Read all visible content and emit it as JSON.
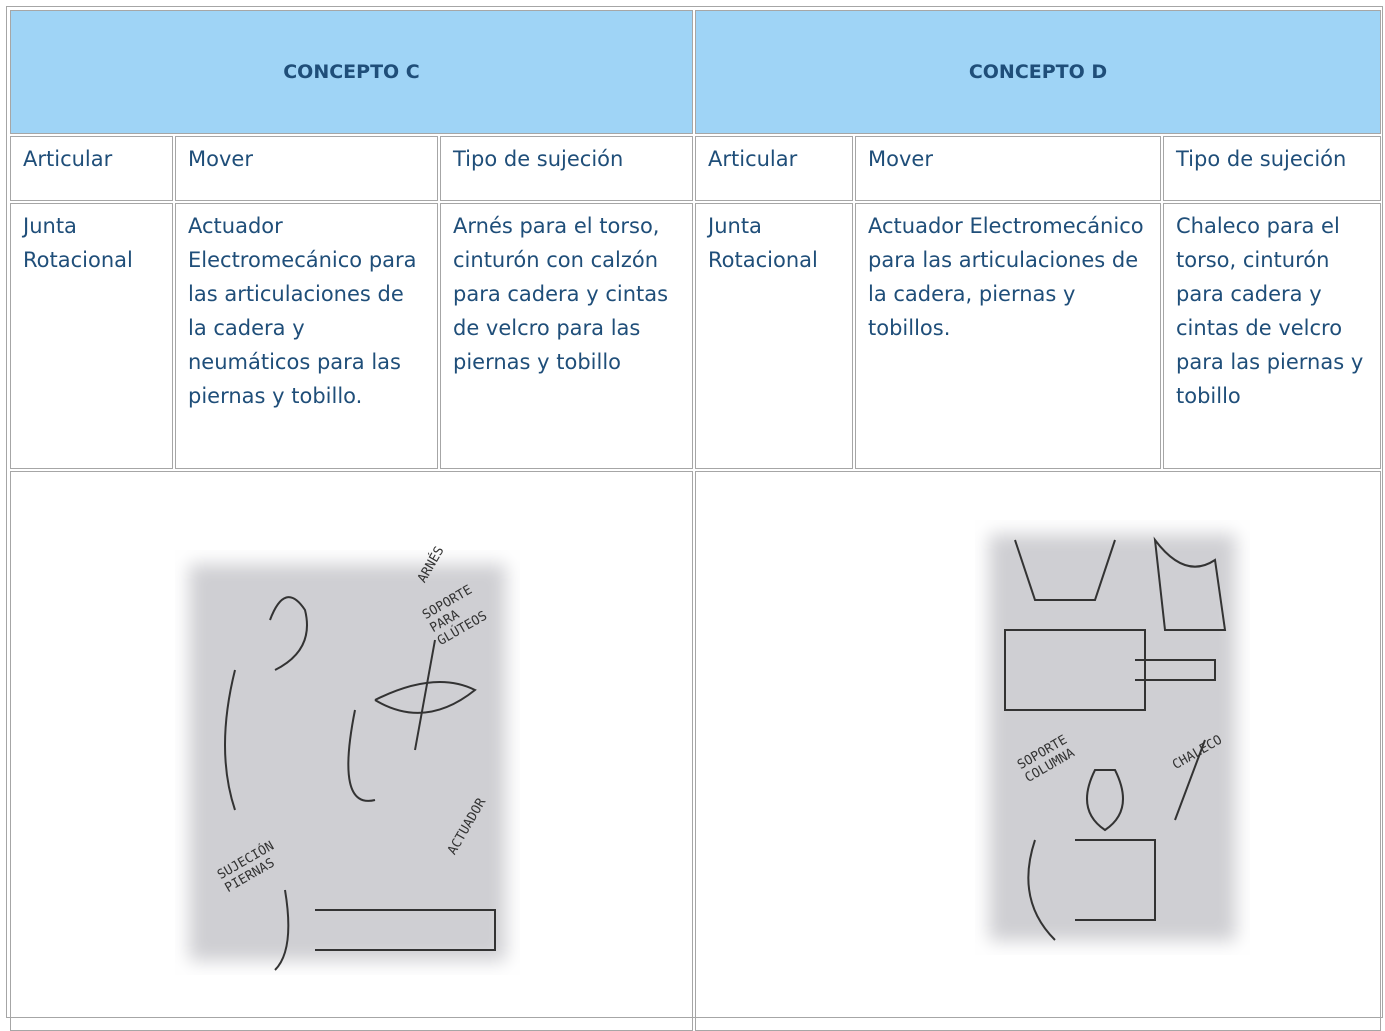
{
  "table": {
    "headers": [
      "CONCEPTO C",
      "CONCEPTO D"
    ],
    "subheaders": [
      [
        "Articular",
        "Mover",
        "Tipo de sujeción"
      ],
      [
        "Articular",
        "Mover",
        "Tipo de sujeción"
      ]
    ],
    "rows": [
      [
        "Junta Rotacional",
        "Actuador Electromecánico para las articulaciones de la cadera y neumáticos para las piernas y tobillo.",
        "Arnés  para el torso, cinturón con calzón  para cadera  y cintas de velcro para las piernas y tobillo"
      ],
      [
        "Junta Rotacional",
        "Actuador Electromecánico para las articulaciones de la cadera,  piernas y tobillos.",
        "Chaleco   para el torso, cinturón  para cadera  y cintas de velcro para las piernas y tobillo"
      ]
    ]
  },
  "images": [
    {
      "labels": [
        "ARNÉS",
        "SOPORTE PARA GLÚTEOS",
        "SUJECIÓN PIERNAS",
        "ACTUADOR"
      ]
    },
    {
      "labels": [
        "SOPORTE COLUMNA",
        "CHALECO"
      ]
    }
  ]
}
